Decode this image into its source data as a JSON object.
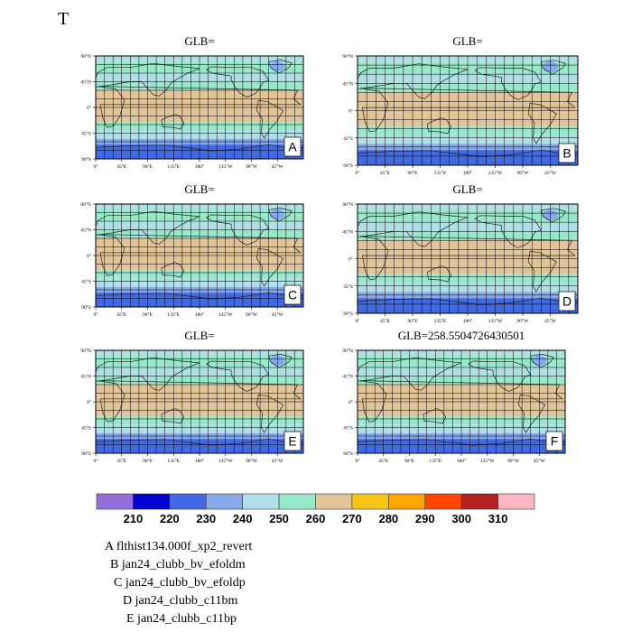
{
  "figure_title": "T",
  "colors": {
    "bins": [
      "#9370db",
      "#0000cd",
      "#4169e1",
      "#87a9ea",
      "#b0e0e6",
      "#98e8cc",
      "#e2c49a",
      "#f5c518",
      "#ffa500",
      "#ff4500",
      "#b22222",
      "#ffb6c1"
    ],
    "land_outline": "#222222"
  },
  "colorbar": {
    "tick_labels": [
      "210",
      "220",
      "230",
      "240",
      "250",
      "260",
      "270",
      "280",
      "290",
      "300",
      "310"
    ]
  },
  "panels": [
    {
      "letter": "A",
      "title": "GLB="
    },
    {
      "letter": "B",
      "title": "GLB="
    },
    {
      "letter": "C",
      "title": "GLB="
    },
    {
      "letter": "D",
      "title": "GLB="
    },
    {
      "letter": "E",
      "title": "GLB="
    },
    {
      "letter": "F",
      "title": "GLB=258.5504726430501"
    }
  ],
  "axes": {
    "lat_ticks": [
      "90°N",
      "45°N",
      "0°",
      "45°S",
      "90°S"
    ],
    "lon_ticks": [
      "0°",
      "45°E",
      "90°E",
      "135°E",
      "180°",
      "135°W",
      "90°W",
      "45°W"
    ]
  },
  "case_legend": [
    {
      "letter": "A",
      "name": "flthist134.000f_xp2_revert"
    },
    {
      "letter": "B",
      "name": "jan24_clubb_bv_efoldm"
    },
    {
      "letter": "C",
      "name": "jan24_clubb_bv_efoldp"
    },
    {
      "letter": "D",
      "name": "jan24_clubb_c11bm"
    },
    {
      "letter": "E",
      "name": "jan24_clubb_c11bp"
    }
  ],
  "chart_data": {
    "type": "heatmap",
    "variable": "T",
    "projection": "cylindrical equidistant",
    "x_range": [
      0,
      360
    ],
    "y_range": [
      -90,
      90
    ],
    "contour_levels": [
      210,
      220,
      230,
      240,
      250,
      260,
      270,
      280,
      290,
      300,
      310
    ],
    "zonal_bands": [
      {
        "lat_from": 90,
        "lat_to": 80,
        "level": 240
      },
      {
        "lat_from": 80,
        "lat_to": 60,
        "level": 250
      },
      {
        "lat_from": 60,
        "lat_to": 45,
        "level": 240
      },
      {
        "lat_from": 45,
        "lat_to": 30,
        "level": 250
      },
      {
        "lat_from": 30,
        "lat_to": -25,
        "level": 260
      },
      {
        "lat_from": -25,
        "lat_to": -40,
        "level": 250
      },
      {
        "lat_from": -40,
        "lat_to": -55,
        "level": 240
      },
      {
        "lat_from": -55,
        "lat_to": -65,
        "level": 230
      },
      {
        "lat_from": -65,
        "lat_to": -90,
        "level": 220
      }
    ],
    "grid": true,
    "legend": "bottom"
  }
}
